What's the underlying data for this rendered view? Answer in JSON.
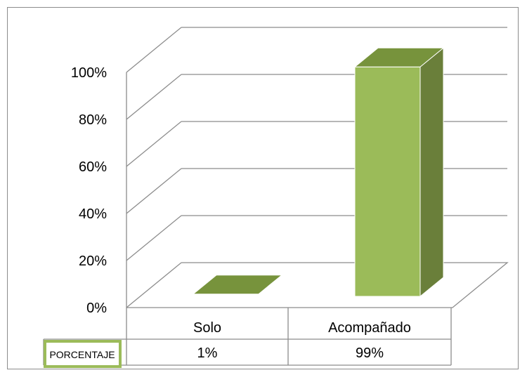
{
  "chart_data": {
    "type": "bar",
    "categories": [
      "Solo",
      "Acompañado"
    ],
    "series": [
      {
        "name": "PORCENTAJE",
        "values": [
          1,
          99
        ],
        "labels": [
          "1%",
          "99%"
        ]
      }
    ],
    "y_ticks": [
      "0%",
      "20%",
      "40%",
      "60%",
      "80%",
      "100%"
    ],
    "ylim": [
      0,
      100
    ],
    "grid": true,
    "data_table": true,
    "colors": {
      "front": "#9bbb59",
      "side": "#6a7f3a",
      "top": "#77933c",
      "grid": "#8c8c8c",
      "legend_key": "#9bbb59"
    }
  }
}
